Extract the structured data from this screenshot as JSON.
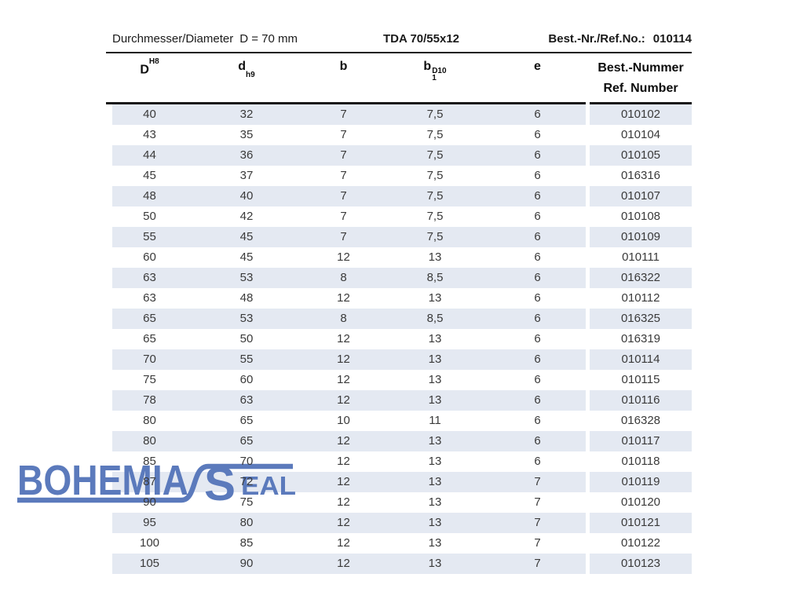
{
  "page_header": {
    "left_label": "Durchmesser/Diameter",
    "left_value": "D = 70 mm",
    "center_code": "TDA 70/55x12",
    "right_label": "Best.-Nr./Ref.No.:",
    "right_value": "010114"
  },
  "table": {
    "columns": [
      {
        "base": "D",
        "sup": "H8"
      },
      {
        "base": "d",
        "sub": "h9"
      },
      {
        "base": "b"
      },
      {
        "base": "b",
        "stack_sub": "1",
        "stack_sup": "D10"
      },
      {
        "base": "e"
      },
      {
        "lines": [
          "Best.-Nummer",
          "Ref. Number"
        ]
      }
    ],
    "rows": [
      [
        "40",
        "32",
        "7",
        "7,5",
        "6",
        "010102"
      ],
      [
        "43",
        "35",
        "7",
        "7,5",
        "6",
        "010104"
      ],
      [
        "44",
        "36",
        "7",
        "7,5",
        "6",
        "010105"
      ],
      [
        "45",
        "37",
        "7",
        "7,5",
        "6",
        "016316"
      ],
      [
        "48",
        "40",
        "7",
        "7,5",
        "6",
        "010107"
      ],
      [
        "50",
        "42",
        "7",
        "7,5",
        "6",
        "010108"
      ],
      [
        "55",
        "45",
        "7",
        "7,5",
        "6",
        "010109"
      ],
      [
        "60",
        "45",
        "12",
        "13",
        "6",
        "010111"
      ],
      [
        "63",
        "53",
        "8",
        "8,5",
        "6",
        "016322"
      ],
      [
        "63",
        "48",
        "12",
        "13",
        "6",
        "010112"
      ],
      [
        "65",
        "53",
        "8",
        "8,5",
        "6",
        "016325"
      ],
      [
        "65",
        "50",
        "12",
        "13",
        "6",
        "016319"
      ],
      [
        "70",
        "55",
        "12",
        "13",
        "6",
        "010114"
      ],
      [
        "75",
        "60",
        "12",
        "13",
        "6",
        "010115"
      ],
      [
        "78",
        "63",
        "12",
        "13",
        "6",
        "010116"
      ],
      [
        "80",
        "65",
        "10",
        "11",
        "6",
        "016328"
      ],
      [
        "80",
        "65",
        "12",
        "13",
        "6",
        "010117"
      ],
      [
        "85",
        "70",
        "12",
        "13",
        "6",
        "010118"
      ],
      [
        "87",
        "72",
        "12",
        "13",
        "7",
        "010119"
      ],
      [
        "90",
        "75",
        "12",
        "13",
        "7",
        "010120"
      ],
      [
        "95",
        "80",
        "12",
        "13",
        "7",
        "010121"
      ],
      [
        "100",
        "85",
        "12",
        "13",
        "7",
        "010122"
      ],
      [
        "105",
        "90",
        "12",
        "13",
        "7",
        "010123"
      ]
    ]
  },
  "watermark": {
    "word1": "BOHEMIA",
    "word2_initial": "S",
    "word2_rest": "EAL"
  },
  "colors": {
    "stripe": "#e4e9f2",
    "logo_blue": "#5b7abc",
    "rule_black": "#1a1a1a"
  }
}
